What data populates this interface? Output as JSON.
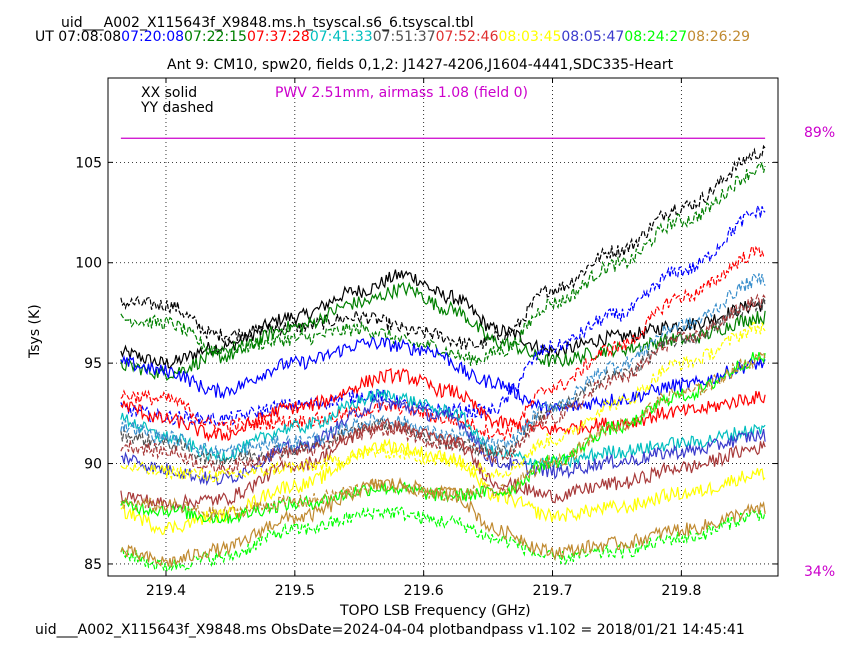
{
  "header": {
    "filename": "uid___A002_X115643f_X9848.ms.h_tsyscal.s6_6.tsyscal.tbl",
    "ut_label": "UT",
    "times": [
      {
        "t": "07:08:08",
        "color": "#000000"
      },
      {
        "t": "07:20:08",
        "color": "#0000ff"
      },
      {
        "t": "07:22:15",
        "color": "#008000"
      },
      {
        "t": "07:37:28",
        "color": "#ff0000"
      },
      {
        "t": "07:41:33",
        "color": "#00bfbf"
      },
      {
        "t": "07:51:37",
        "color": "#505050"
      },
      {
        "t": "07:52:46",
        "color": "#e03030"
      },
      {
        "t": "08:03:45",
        "color": "#ffff00"
      },
      {
        "t": "08:05:47",
        "color": "#3a3acc"
      },
      {
        "t": "08:24:27",
        "color": "#00ff00"
      },
      {
        "t": "08:26:29",
        "color": "#c08a30"
      }
    ]
  },
  "footer": "uid___A002_X115643f_X9848.ms  ObsDate=2024-04-04   plotbandpass v1.102 = 2018/01/21 14:45:41",
  "chart_data": {
    "type": "line",
    "title": "Ant 9: CM10,  spw20,  fields 0,1,2: J1427-4206,J1604-4441,SDC335-Heart",
    "xlabel": "TOPO LSB Frequency (GHz)",
    "ylabel": "Tsys (K)",
    "xlim": [
      219.355,
      219.875
    ],
    "ylim": [
      84.4,
      109.2
    ],
    "xticks": [
      "219.4",
      "219.5",
      "219.6",
      "219.7",
      "219.8"
    ],
    "xtick_values": [
      219.4,
      219.5,
      219.6,
      219.7,
      219.8
    ],
    "yticks": [
      "85",
      "90",
      "95",
      "100",
      "105"
    ],
    "ytick_values": [
      85,
      90,
      95,
      100,
      105
    ],
    "grid": true,
    "legend": {
      "solid": "XX solid",
      "dashed": "YY dashed"
    },
    "pwv": {
      "text": "PWV 2.51mm, airmass 1.08 (field 0)",
      "color": "#cc00cc",
      "value": 106.2
    },
    "transmission_labels": {
      "top": "89%",
      "bottom": "34%",
      "color": "#cc00cc"
    },
    "series": [
      {
        "color": "#000000",
        "style": "solid",
        "x": [
          219.365,
          219.4,
          219.44,
          219.5,
          219.55,
          219.585,
          219.62,
          219.66,
          219.7,
          219.75,
          219.8,
          219.865
        ],
        "y": [
          95.5,
          95.0,
          95.8,
          97.3,
          98.6,
          99.4,
          98.3,
          96.6,
          95.6,
          96.3,
          96.9,
          97.9
        ]
      },
      {
        "color": "#000000",
        "style": "dashed",
        "x": [
          219.365,
          219.4,
          219.44,
          219.5,
          219.55,
          219.6,
          219.64,
          219.66,
          219.7,
          219.75,
          219.8,
          219.865
        ],
        "y": [
          98.0,
          97.9,
          96.4,
          96.8,
          97.3,
          96.5,
          95.9,
          96.3,
          98.7,
          100.6,
          102.8,
          105.5
        ]
      },
      {
        "color": "#008000",
        "style": "solid",
        "x": [
          219.365,
          219.4,
          219.44,
          219.5,
          219.55,
          219.585,
          219.62,
          219.66,
          219.7,
          219.75,
          219.8,
          219.865
        ],
        "y": [
          94.9,
          94.5,
          95.3,
          96.8,
          98.0,
          98.7,
          97.7,
          96.0,
          95.1,
          95.7,
          96.2,
          97.3
        ]
      },
      {
        "color": "#008000",
        "style": "dashed",
        "x": [
          219.365,
          219.4,
          219.44,
          219.5,
          219.55,
          219.6,
          219.64,
          219.66,
          219.7,
          219.75,
          219.8,
          219.865
        ],
        "y": [
          97.2,
          97.0,
          95.7,
          96.2,
          96.7,
          95.9,
          95.2,
          95.6,
          98.0,
          99.9,
          102.1,
          104.7
        ]
      },
      {
        "color": "#0000ff",
        "style": "solid",
        "x": [
          219.365,
          219.4,
          219.44,
          219.5,
          219.56,
          219.6,
          219.65,
          219.7,
          219.75,
          219.8,
          219.865
        ],
        "y": [
          95.0,
          94.6,
          93.6,
          95.0,
          96.0,
          95.7,
          94.1,
          92.7,
          93.2,
          93.9,
          95.0
        ]
      },
      {
        "color": "#0000ff",
        "style": "dashed",
        "x": [
          219.365,
          219.4,
          219.44,
          219.5,
          219.56,
          219.6,
          219.65,
          219.7,
          219.75,
          219.8,
          219.865
        ],
        "y": [
          92.7,
          92.3,
          92.2,
          92.9,
          93.4,
          92.7,
          92.6,
          95.8,
          97.4,
          99.6,
          102.6
        ]
      },
      {
        "color": "#ff0000",
        "style": "solid",
        "x": [
          219.365,
          219.4,
          219.44,
          219.5,
          219.58,
          219.62,
          219.66,
          219.7,
          219.75,
          219.8,
          219.865
        ],
        "y": [
          92.9,
          92.2,
          91.4,
          92.8,
          94.4,
          93.6,
          92.0,
          91.7,
          92.0,
          92.6,
          93.3
        ]
      },
      {
        "color": "#ff0000",
        "style": "dashed",
        "x": [
          219.365,
          219.4,
          219.44,
          219.5,
          219.58,
          219.62,
          219.66,
          219.7,
          219.75,
          219.8,
          219.865
        ],
        "y": [
          93.4,
          93.2,
          91.9,
          92.1,
          92.8,
          92.2,
          91.5,
          93.8,
          95.8,
          98.3,
          100.6
        ]
      },
      {
        "color": "#00bfbf",
        "style": "solid",
        "x": [
          219.365,
          219.4,
          219.44,
          219.5,
          219.57,
          219.62,
          219.66,
          219.7,
          219.75,
          219.8,
          219.865
        ],
        "y": [
          92.2,
          91.3,
          90.4,
          91.8,
          93.4,
          92.6,
          90.4,
          90.0,
          90.6,
          91.0,
          91.7
        ]
      },
      {
        "color": "#3a3acc",
        "style": "solid",
        "x": [
          219.365,
          219.4,
          219.44,
          219.5,
          219.57,
          219.62,
          219.66,
          219.7,
          219.75,
          219.8,
          219.865
        ],
        "y": [
          90.3,
          89.7,
          89.2,
          90.8,
          93.0,
          92.3,
          90.0,
          89.6,
          90.1,
          90.6,
          91.4
        ]
      },
      {
        "color": "#505050",
        "style": "dashed",
        "x": [
          219.365,
          219.4,
          219.44,
          219.5,
          219.57,
          219.62,
          219.66,
          219.7,
          219.75,
          219.8,
          219.865
        ],
        "y": [
          91.4,
          91.0,
          90.2,
          90.7,
          92.0,
          91.0,
          90.6,
          92.7,
          94.4,
          96.2,
          98.0
        ]
      },
      {
        "color": "#3a8fcc",
        "style": "dashed",
        "x": [
          219.365,
          219.4,
          219.44,
          219.5,
          219.57,
          219.62,
          219.66,
          219.7,
          219.75,
          219.8,
          219.865
        ],
        "y": [
          91.9,
          91.3,
          90.6,
          91.1,
          92.2,
          91.4,
          90.9,
          92.9,
          94.9,
          96.9,
          99.2
        ]
      },
      {
        "color": "#a83a3a",
        "style": "solid",
        "x": [
          219.365,
          219.4,
          219.44,
          219.5,
          219.57,
          219.62,
          219.66,
          219.7,
          219.75,
          219.8,
          219.865
        ],
        "y": [
          88.4,
          88.0,
          88.2,
          89.9,
          91.9,
          91.2,
          89.0,
          88.4,
          89.0,
          89.8,
          90.8
        ]
      },
      {
        "color": "#a83a3a",
        "style": "dashed",
        "x": [
          219.365,
          219.4,
          219.44,
          219.5,
          219.57,
          219.62,
          219.66,
          219.7,
          219.75,
          219.8,
          219.865
        ],
        "y": [
          90.9,
          90.6,
          89.8,
          90.6,
          91.7,
          91.0,
          90.3,
          92.3,
          94.2,
          96.2,
          98.1
        ]
      },
      {
        "color": "#ffff00",
        "style": "solid",
        "x": [
          219.365,
          219.4,
          219.44,
          219.5,
          219.57,
          219.62,
          219.66,
          219.7,
          219.75,
          219.8,
          219.865
        ],
        "y": [
          87.6,
          86.8,
          87.4,
          88.9,
          90.9,
          90.3,
          88.3,
          87.4,
          87.8,
          88.5,
          89.5
        ]
      },
      {
        "color": "#ffff00",
        "style": "dashed",
        "x": [
          219.365,
          219.4,
          219.44,
          219.5,
          219.57,
          219.62,
          219.66,
          219.7,
          219.75,
          219.8,
          219.865
        ],
        "y": [
          89.8,
          89.6,
          89.4,
          89.8,
          90.6,
          90.1,
          89.6,
          91.2,
          93.0,
          95.0,
          96.8
        ]
      },
      {
        "color": "#00ff00",
        "style": "solid",
        "x": [
          219.365,
          219.4,
          219.44,
          219.5,
          219.57,
          219.62,
          219.66,
          219.7,
          219.75,
          219.8,
          219.865
        ],
        "y": [
          87.9,
          87.7,
          87.3,
          88.0,
          88.8,
          88.4,
          88.6,
          90.1,
          91.8,
          93.4,
          95.3
        ]
      },
      {
        "color": "#00ff00",
        "style": "dashed",
        "x": [
          219.365,
          219.4,
          219.44,
          219.5,
          219.57,
          219.62,
          219.66,
          219.7,
          219.75,
          219.8,
          219.865
        ],
        "y": [
          85.5,
          84.9,
          85.3,
          86.7,
          87.6,
          87.1,
          86.2,
          85.3,
          85.6,
          86.3,
          87.5
        ]
      },
      {
        "color": "#c08a30",
        "style": "solid",
        "x": [
          219.365,
          219.4,
          219.44,
          219.5,
          219.57,
          219.62,
          219.66,
          219.7,
          219.75,
          219.8,
          219.865
        ],
        "y": [
          85.6,
          85.1,
          85.7,
          87.3,
          89.0,
          88.5,
          86.6,
          85.6,
          86.0,
          86.7,
          87.7
        ]
      },
      {
        "color": "#c08a30",
        "style": "dashed",
        "x": [
          219.365,
          219.4,
          219.44,
          219.5,
          219.57,
          219.62,
          219.66,
          219.7,
          219.75,
          219.8,
          219.865
        ],
        "y": [
          88.0,
          87.9,
          87.5,
          88.1,
          88.9,
          88.5,
          88.6,
          90.1,
          91.9,
          93.5,
          95.2
        ]
      }
    ]
  }
}
